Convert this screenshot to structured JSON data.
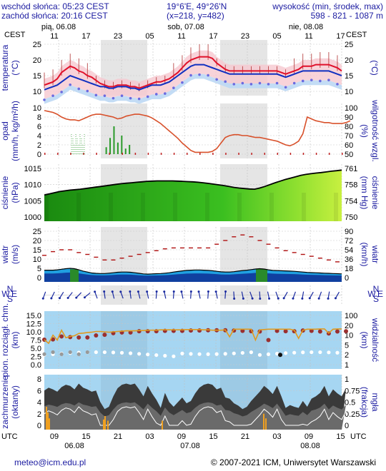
{
  "header": {
    "sunrise": "wschód słońca: 05:23 CEST",
    "sunset": "zachód słońca: 20:16 CEST",
    "coords": "19°6'E, 49°26'N",
    "grid": "(x=218, y=482)",
    "height_label": "wysokość (min, środek, max)",
    "height_values": "598 - 821 - 1087 m"
  },
  "top_axis": {
    "tz_left": "CEST",
    "tz_right": "CEST",
    "days": [
      "pią, 06.08",
      "sob, 07.08",
      "nie, 08.08"
    ],
    "hours": [
      "11",
      "17",
      "23",
      "05",
      "11",
      "17",
      "23",
      "05",
      "11",
      "17"
    ]
  },
  "bottom_axis": {
    "tz_left": "UTC",
    "tz_right": "UTC",
    "hours": [
      "09",
      "15",
      "21",
      "03",
      "09",
      "15",
      "21",
      "03",
      "09",
      "15"
    ],
    "dates": [
      "06.08",
      "07.08",
      "08.08"
    ]
  },
  "footer": {
    "email": "meteo@icm.edu.pl",
    "copyright": "© 2007-2021 ICM, Uniwersytet Warszawski"
  },
  "panels": {
    "temp": {
      "left": "temperatura",
      "left_unit": "(°C)",
      "right_unit": "(°C)",
      "ticks_left": [
        "25",
        "20",
        "15",
        "10"
      ],
      "ticks_right": [
        "25",
        "20",
        "15",
        "10"
      ]
    },
    "precip": {
      "left": "opad",
      "left_unit": "(mm/h, kg/m²/h)",
      "right": "wilgotność wzgl.",
      "right_unit": "(%)",
      "ticks_left": [
        "10",
        "8",
        "6",
        "4",
        "2",
        "0"
      ],
      "ticks_right": [
        "100",
        "90",
        "80",
        "70",
        "60",
        "50"
      ]
    },
    "pressure": {
      "left": "ciśnienie",
      "left_unit": "(hPa)",
      "right": "ciśnienie",
      "right_unit": "(mm Hg)",
      "ticks_left": [
        "1015",
        "1010",
        "1005",
        "1000"
      ],
      "ticks_right": [
        "761",
        "758",
        "754",
        "750"
      ]
    },
    "wind": {
      "left": "wiatr",
      "left_unit": "(m/s)",
      "right": "wiatr",
      "right_unit": "(km/h)",
      "ticks_left": [
        "25",
        "20",
        "15",
        "10",
        "5",
        "0"
      ],
      "ticks_right": [
        "90",
        "72",
        "54",
        "36",
        "18",
        "0"
      ]
    },
    "winddir": {
      "labels": [
        "N",
        "W",
        "E",
        "S"
      ]
    },
    "cloudbase": {
      "left": "pion. rozciągł. chm.",
      "left_unit": "(km)",
      "right": "widzialność",
      "right_unit": "(km)",
      "ticks_left": [
        "15.0",
        "12.5",
        "10.0",
        "7.5",
        "5.0",
        "2.5",
        "0.0"
      ],
      "ticks_right": [
        "100",
        "20",
        "10",
        "5",
        "2",
        "1"
      ]
    },
    "clouds": {
      "left": "zachmurzenie",
      "left_unit": "(oktanty)",
      "right": "mgła",
      "right_unit": "(frakcja)",
      "ticks_left": [
        "8",
        "6",
        "4",
        "2",
        "0"
      ],
      "ticks_right": [
        "1",
        "0.75",
        "0.5",
        "0.25",
        "0"
      ]
    }
  },
  "chart_data": [
    {
      "type": "line",
      "x_hours_from_start": "hourly, 06.08 09 UTC onward",
      "series": [
        {
          "values": [
            12,
            12.5,
            13,
            14,
            16,
            17,
            18,
            17.5,
            16.5,
            16,
            15,
            14.5,
            13.5,
            12.5,
            12,
            11.5,
            11.5,
            12,
            12,
            12,
            11.5,
            11.5,
            11,
            11.5,
            12,
            12.5,
            13,
            13,
            13.5,
            14,
            15,
            16,
            17.5,
            19,
            20,
            20.5,
            21,
            21,
            21,
            20.5,
            19,
            18,
            17,
            16.5,
            16.5,
            16.5,
            16.5,
            16.5,
            16.5,
            16.5,
            16.5,
            16.5,
            16.5,
            16.5,
            16.5,
            16,
            15.5,
            16,
            16.5,
            17,
            18,
            18,
            18,
            18.5,
            18.5,
            18.5,
            18.5,
            18,
            17.5,
            16.5
          ]
        },
        {
          "values": [
            10.5,
            11,
            11.5,
            12,
            13,
            14,
            15,
            14.5,
            14,
            13.5,
            13,
            12.5,
            12,
            11.5,
            11.5,
            11,
            11,
            11.5,
            11.5,
            11.5,
            11,
            11,
            10.5,
            11,
            11.5,
            12,
            12,
            12,
            12.5,
            13,
            14,
            15,
            16,
            17,
            18,
            18.5,
            18.5,
            18.5,
            18,
            17.5,
            17,
            16.5,
            16,
            15.5,
            15.5,
            15.5,
            15.5,
            15.5,
            15.5,
            15.5,
            15.5,
            15.5,
            15.5,
            15.5,
            15.5,
            15,
            14.5,
            15,
            15.5,
            16,
            16.5,
            16.5,
            16.5,
            16.5,
            16.5,
            16.5,
            16.5,
            16,
            15.5,
            15
          ]
        }
      ],
      "ylim": [
        5,
        25
      ]
    },
    {
      "type": "line",
      "series": [
        {
          "values": [
            97,
            96,
            95,
            93,
            90,
            88,
            87,
            87,
            86,
            88,
            90,
            92,
            93,
            93,
            92,
            91,
            90,
            88,
            89,
            91,
            92,
            93,
            93,
            92,
            91,
            89,
            86,
            83,
            79,
            75,
            71,
            67,
            62,
            58,
            54,
            52,
            52,
            52,
            52,
            53,
            56,
            62,
            68,
            70,
            71,
            71,
            70,
            70,
            69,
            68,
            68,
            67,
            66,
            65,
            64,
            62,
            60,
            59,
            61,
            64,
            72,
            90,
            88,
            86,
            85,
            84,
            84,
            83,
            83,
            83,
            84,
            86
          ]
        }
      ],
      "ylim": [
        50,
        100
      ]
    },
    {
      "type": "area",
      "series": [
        {
          "values": [
            1004.5,
            1005,
            1005.5,
            1006,
            1006.3,
            1006.6,
            1006.8,
            1007,
            1007.3,
            1007.6,
            1007.9,
            1008.2,
            1008.5,
            1008.8,
            1009.1,
            1009.4,
            1009.6,
            1009.8,
            1010,
            1010.2,
            1010.4,
            1010.5,
            1010.6,
            1010.6,
            1010.6,
            1010.6,
            1010.5,
            1010.4,
            1010.3,
            1010.2,
            1010,
            1009.8,
            1009.5,
            1009.2,
            1008.9,
            1008.6,
            1008.2,
            1007.8,
            1007.5,
            1007.3,
            1007.1,
            1007,
            1007.5,
            1008.2,
            1009,
            1009.8,
            1010.5,
            1011.2,
            1011.8,
            1012.4,
            1013,
            1013.4,
            1013.7,
            1014,
            1014.2,
            1014.5,
            1014.8,
            1015,
            1015.3
          ]
        }
      ],
      "ylim": [
        995,
        1016
      ]
    },
    {
      "type": "area",
      "series": [
        {
          "values": [
            4,
            4,
            4,
            4.2,
            4.5,
            4.8,
            5,
            4.8,
            4.2,
            3.5,
            3,
            2.5,
            2.3,
            2.2,
            2.2,
            2.4,
            2.6,
            2.9,
            3,
            3,
            2.9,
            2.6,
            2.3,
            2,
            1.9,
            2,
            2.1,
            2.2,
            2.4,
            2.6,
            3,
            3.3,
            3.6,
            3.9,
            4,
            4.1,
            4.1,
            4,
            3.9,
            3.7,
            3.4,
            3.1,
            3,
            3,
            3.2,
            3.5,
            3.8,
            4,
            4.3,
            4.6,
            4.8,
            4.6,
            4.2,
            3.9,
            3.8,
            3.7,
            3.6,
            3.5,
            3.4,
            3.2,
            3,
            2.8,
            2.7,
            2.6,
            2.5,
            2.4,
            2.3,
            2.2,
            2.1,
            2
          ]
        },
        {
          "values": [
            12,
            13,
            14,
            14.5,
            15,
            15.5,
            15,
            14.5,
            13.5,
            13,
            12.5,
            12,
            11,
            10,
            9.5,
            9,
            9.5,
            10,
            10.5,
            11,
            11.5,
            12,
            12.5,
            13,
            13.5,
            14,
            14.5,
            15,
            15.5,
            16,
            16,
            16,
            16,
            16,
            16,
            16,
            16,
            16,
            16,
            17,
            18,
            19,
            20,
            21,
            22,
            23,
            23,
            23,
            22,
            21,
            20,
            19,
            18,
            17,
            16,
            15,
            14.5,
            14,
            13.5,
            13,
            12.5,
            12,
            11.5,
            11,
            10.5,
            10,
            9.5,
            9,
            8.5,
            8
          ]
        }
      ],
      "ylim": [
        0,
        25
      ]
    },
    {
      "type": "scatter",
      "series": [
        {
          "values": [
            7.6,
            7.5,
            7.7,
            8.1,
            8.6,
            8.3,
            8.4,
            8.1,
            8.3,
            8.3,
            8.3,
            8.6,
            8.9,
            9.0,
            9.1,
            9.3,
            9.6,
            9.8,
            9.8,
            9.8,
            9.8,
            10.0,
            10.2,
            10.3,
            10.2,
            10.3,
            10.2,
            10.3,
            10.3,
            10.3,
            10.3,
            10.2,
            10.3,
            10.3,
            10.4,
            10.4,
            10.4,
            10.5,
            10.5,
            10.5,
            10.5,
            10.5,
            10.5,
            10.5,
            10.4,
            10.4,
            10.3,
            10.2,
            10.2,
            10.1,
            10.1,
            8.5,
            7.5,
            10.0,
            10.3,
            10.2,
            10.2,
            10.3,
            10.2,
            10.2,
            10.4,
            10.4,
            10.3,
            10.2,
            10.1,
            10.1,
            9.5,
            9.7,
            10.1,
            10.2,
            10.2
          ]
        },
        {
          "values": [
            12.5,
            12.5,
            12.5,
            12.5,
            12.5,
            12.5,
            12.5,
            12.5,
            12.5,
            12.5,
            12.5,
            12.5,
            12.5,
            12.5,
            12.5,
            12.5,
            12.5,
            12.5,
            12.5,
            12.5,
            12.5,
            12.5,
            12.5,
            12.5,
            12.5,
            12.5,
            12.5,
            12.5,
            12.5,
            12.5,
            12.5,
            12.5,
            12.5,
            12.5,
            12.5,
            12.5,
            12.5,
            12.5,
            12.5,
            12.5,
            12.5,
            12.5,
            12.5,
            12.5,
            12.5,
            12.5,
            12.5,
            12.5,
            12.5,
            12.5,
            12.5,
            12.5,
            12.5,
            12.5,
            12.5,
            12.5,
            12.5,
            12.5,
            12.5,
            12.5,
            12.5,
            12.5,
            12.5,
            12.5,
            12.5,
            12.5,
            12.5,
            12.5,
            12.5,
            12.5,
            12.5
          ]
        }
      ],
      "ylim": [
        0,
        15
      ]
    },
    {
      "type": "area",
      "series": [
        {
          "values": [
            6,
            6.5,
            6.2,
            5.8,
            6.6,
            7.0,
            6.8,
            6.2,
            7.2,
            6.5,
            6.2,
            5.8,
            6.0,
            4.0,
            2.8,
            3.2,
            5.0,
            6.4,
            7.0,
            7.2,
            7.0,
            7.2,
            6.2,
            5.0,
            6.8,
            5.5,
            4.4,
            3.0,
            5.6,
            4.0,
            3.2,
            4.0,
            4.8,
            3.8,
            4.2,
            5.5,
            6.5,
            7.0,
            7.2,
            7.0,
            6.2,
            6.5,
            4.8,
            4.6,
            3.8,
            3.4,
            2.8,
            3.2,
            4.2,
            5.0,
            5.8,
            6.8,
            6.2,
            5.4,
            6.8,
            5.0,
            3.0,
            3.5,
            3.2,
            3.0,
            4.2,
            3.2,
            4.6,
            5.0,
            5.6,
            6.8,
            5.0,
            6.2,
            5.5,
            5.0,
            6.4
          ]
        }
      ],
      "ylim": [
        0,
        8
      ]
    }
  ]
}
